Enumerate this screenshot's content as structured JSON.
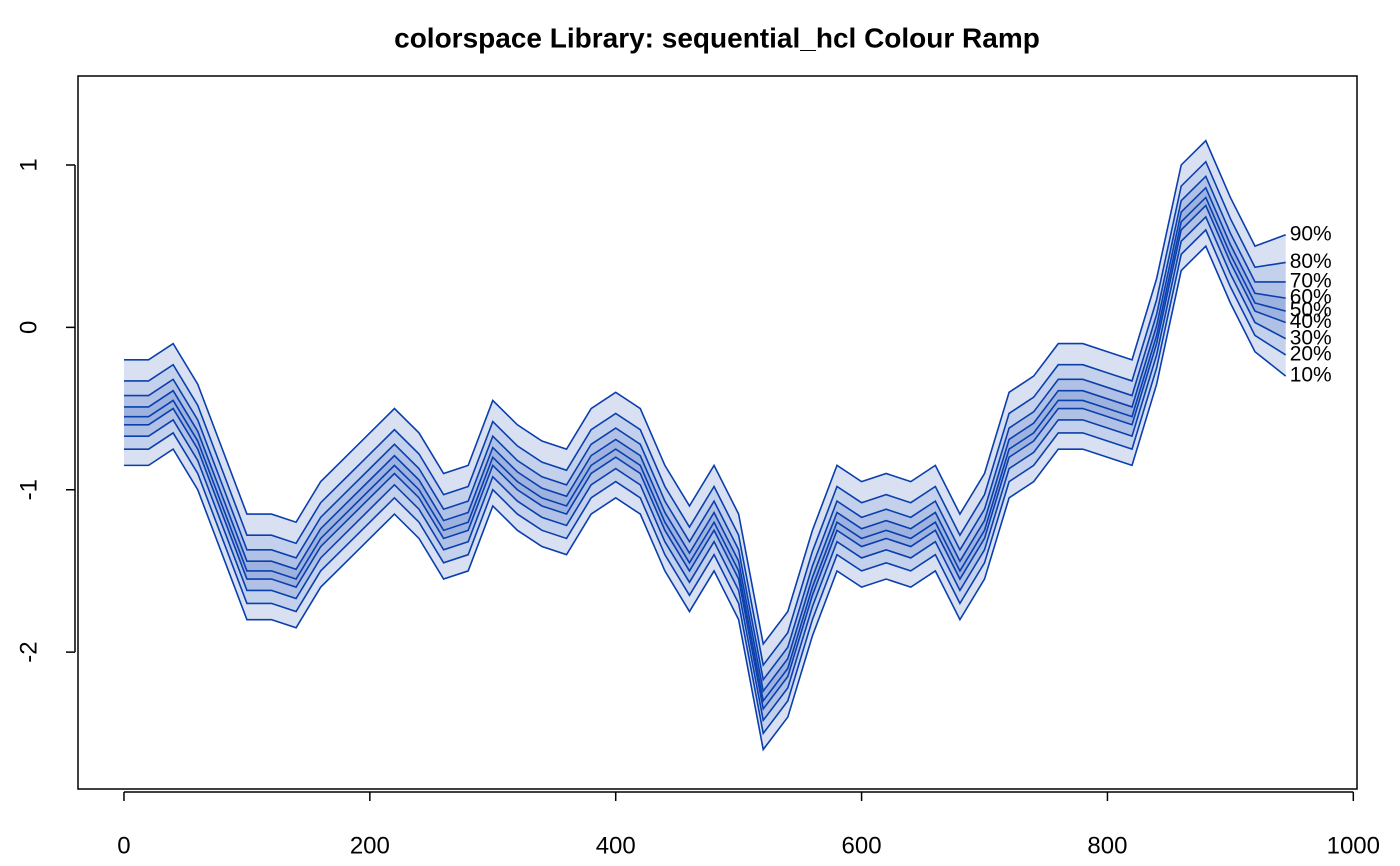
{
  "chart_data": {
    "type": "fan",
    "title": "colorspace Library: sequential_hcl Colour Ramp",
    "x": [
      0,
      20,
      40,
      60,
      80,
      100,
      120,
      140,
      160,
      180,
      200,
      220,
      240,
      260,
      280,
      300,
      320,
      340,
      360,
      380,
      400,
      420,
      440,
      460,
      480,
      500,
      520,
      540,
      560,
      580,
      600,
      620,
      640,
      660,
      680,
      700,
      720,
      740,
      760,
      780,
      800,
      820,
      840,
      860,
      880,
      900,
      920,
      945
    ],
    "xlim": [
      -37.4,
      1003
    ],
    "xticks": [
      0,
      200,
      400,
      600,
      800,
      1000
    ],
    "ylim": [
      -2.843,
      1.548
    ],
    "yticks": [
      -2,
      -1,
      0,
      1
    ],
    "color": "#0a3fae",
    "series": [
      {
        "name": "10%",
        "values": [
          -0.85,
          -0.85,
          -0.75,
          -1.0,
          -1.4,
          -1.8,
          -1.8,
          -1.85,
          -1.6,
          -1.45,
          -1.3,
          -1.15,
          -1.3,
          -1.55,
          -1.5,
          -1.1,
          -1.25,
          -1.35,
          -1.4,
          -1.15,
          -1.05,
          -1.15,
          -1.5,
          -1.75,
          -1.5,
          -1.8,
          -2.6,
          -2.4,
          -1.9,
          -1.5,
          -1.6,
          -1.55,
          -1.6,
          -1.5,
          -1.8,
          -1.55,
          -1.05,
          -0.95,
          -0.75,
          -0.75,
          -0.8,
          -0.85,
          -0.35,
          0.35,
          0.5,
          0.15,
          -0.15,
          -0.3
        ]
      },
      {
        "name": "20%",
        "values": [
          -0.75,
          -0.75,
          -0.65,
          -0.9,
          -1.3,
          -1.7,
          -1.7,
          -1.75,
          -1.5,
          -1.35,
          -1.2,
          -1.05,
          -1.2,
          -1.45,
          -1.4,
          -1.0,
          -1.15,
          -1.25,
          -1.3,
          -1.05,
          -0.95,
          -1.05,
          -1.4,
          -1.65,
          -1.4,
          -1.7,
          -2.5,
          -2.3,
          -1.8,
          -1.4,
          -1.5,
          -1.45,
          -1.5,
          -1.4,
          -1.7,
          -1.45,
          -0.95,
          -0.85,
          -0.65,
          -0.65,
          -0.7,
          -0.75,
          -0.25,
          0.45,
          0.6,
          0.25,
          -0.05,
          -0.17
        ]
      },
      {
        "name": "30%",
        "values": [
          -0.67,
          -0.67,
          -0.57,
          -0.82,
          -1.22,
          -1.62,
          -1.62,
          -1.67,
          -1.42,
          -1.27,
          -1.12,
          -0.97,
          -1.12,
          -1.37,
          -1.32,
          -0.92,
          -1.07,
          -1.17,
          -1.22,
          -0.97,
          -0.87,
          -0.97,
          -1.32,
          -1.57,
          -1.32,
          -1.62,
          -2.42,
          -2.22,
          -1.72,
          -1.32,
          -1.42,
          -1.37,
          -1.42,
          -1.32,
          -1.62,
          -1.37,
          -0.87,
          -0.77,
          -0.57,
          -0.57,
          -0.62,
          -0.67,
          -0.17,
          0.53,
          0.68,
          0.33,
          0.03,
          -0.07
        ]
      },
      {
        "name": "40%",
        "values": [
          -0.6,
          -0.6,
          -0.5,
          -0.75,
          -1.15,
          -1.55,
          -1.55,
          -1.6,
          -1.35,
          -1.2,
          -1.05,
          -0.9,
          -1.05,
          -1.3,
          -1.25,
          -0.85,
          -1.0,
          -1.1,
          -1.15,
          -0.9,
          -0.8,
          -0.9,
          -1.25,
          -1.5,
          -1.25,
          -1.55,
          -2.35,
          -2.15,
          -1.65,
          -1.25,
          -1.35,
          -1.3,
          -1.35,
          -1.25,
          -1.55,
          -1.3,
          -0.8,
          -0.7,
          -0.5,
          -0.5,
          -0.55,
          -0.6,
          -0.1,
          0.6,
          0.75,
          0.4,
          0.1,
          0.03
        ]
      },
      {
        "name": "50%",
        "values": [
          -0.55,
          -0.55,
          -0.45,
          -0.7,
          -1.1,
          -1.5,
          -1.5,
          -1.55,
          -1.3,
          -1.15,
          -1.0,
          -0.85,
          -1.0,
          -1.25,
          -1.2,
          -0.8,
          -0.95,
          -1.05,
          -1.1,
          -0.85,
          -0.75,
          -0.85,
          -1.2,
          -1.45,
          -1.2,
          -1.5,
          -2.3,
          -2.1,
          -1.6,
          -1.2,
          -1.3,
          -1.25,
          -1.3,
          -1.2,
          -1.5,
          -1.25,
          -0.75,
          -0.65,
          -0.45,
          -0.45,
          -0.5,
          -0.55,
          -0.05,
          0.65,
          0.8,
          0.45,
          0.15,
          0.1
        ]
      },
      {
        "name": "60%",
        "values": [
          -0.49,
          -0.49,
          -0.39,
          -0.64,
          -1.04,
          -1.44,
          -1.44,
          -1.49,
          -1.24,
          -1.09,
          -0.94,
          -0.79,
          -0.94,
          -1.19,
          -1.14,
          -0.74,
          -0.89,
          -0.99,
          -1.04,
          -0.79,
          -0.69,
          -0.79,
          -1.14,
          -1.39,
          -1.14,
          -1.44,
          -2.24,
          -2.04,
          -1.54,
          -1.14,
          -1.24,
          -1.19,
          -1.24,
          -1.14,
          -1.44,
          -1.19,
          -0.69,
          -0.59,
          -0.39,
          -0.39,
          -0.44,
          -0.49,
          0.01,
          0.71,
          0.86,
          0.51,
          0.21,
          0.18
        ]
      },
      {
        "name": "70%",
        "values": [
          -0.42,
          -0.42,
          -0.32,
          -0.57,
          -0.97,
          -1.37,
          -1.37,
          -1.42,
          -1.17,
          -1.02,
          -0.87,
          -0.72,
          -0.87,
          -1.12,
          -1.07,
          -0.67,
          -0.82,
          -0.92,
          -0.97,
          -0.72,
          -0.62,
          -0.72,
          -1.07,
          -1.32,
          -1.07,
          -1.37,
          -2.17,
          -1.97,
          -1.47,
          -1.07,
          -1.17,
          -1.12,
          -1.17,
          -1.07,
          -1.37,
          -1.12,
          -0.62,
          -0.52,
          -0.32,
          -0.32,
          -0.37,
          -0.42,
          0.08,
          0.78,
          0.93,
          0.58,
          0.28,
          0.28
        ]
      },
      {
        "name": "80%",
        "values": [
          -0.33,
          -0.33,
          -0.23,
          -0.48,
          -0.88,
          -1.28,
          -1.28,
          -1.33,
          -1.08,
          -0.93,
          -0.78,
          -0.63,
          -0.78,
          -1.03,
          -0.98,
          -0.58,
          -0.73,
          -0.83,
          -0.88,
          -0.63,
          -0.53,
          -0.63,
          -0.98,
          -1.23,
          -0.98,
          -1.28,
          -2.08,
          -1.88,
          -1.38,
          -0.98,
          -1.08,
          -1.03,
          -1.08,
          -0.98,
          -1.28,
          -1.03,
          -0.53,
          -0.43,
          -0.23,
          -0.23,
          -0.28,
          -0.33,
          0.17,
          0.87,
          1.02,
          0.67,
          0.37,
          0.4
        ]
      },
      {
        "name": "90%",
        "values": [
          -0.2,
          -0.2,
          -0.1,
          -0.35,
          -0.75,
          -1.15,
          -1.15,
          -1.2,
          -0.95,
          -0.8,
          -0.65,
          -0.5,
          -0.65,
          -0.9,
          -0.85,
          -0.45,
          -0.6,
          -0.7,
          -0.75,
          -0.5,
          -0.4,
          -0.5,
          -0.85,
          -1.1,
          -0.85,
          -1.15,
          -1.95,
          -1.75,
          -1.25,
          -0.85,
          -0.95,
          -0.9,
          -0.95,
          -0.85,
          -1.15,
          -0.9,
          -0.4,
          -0.3,
          -0.1,
          -0.1,
          -0.15,
          -0.2,
          0.3,
          1.0,
          1.15,
          0.8,
          0.5,
          0.57
        ]
      }
    ]
  }
}
